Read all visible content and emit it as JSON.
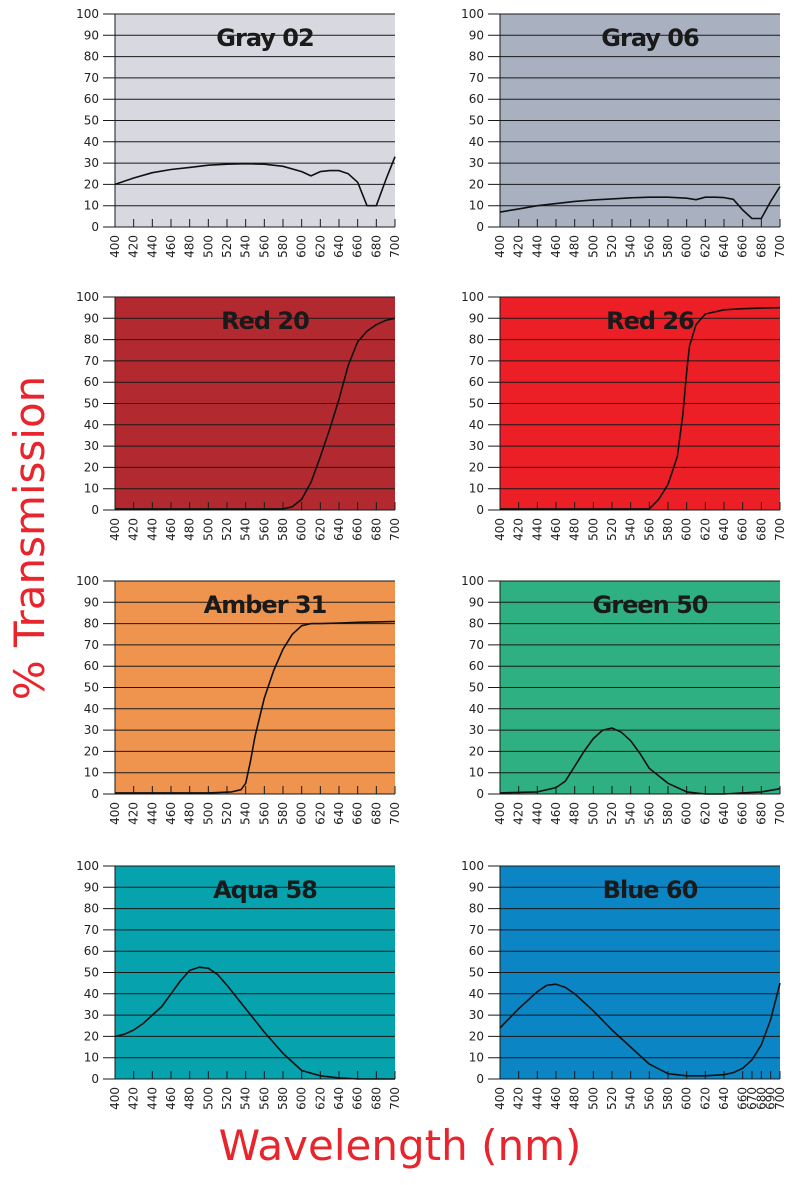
{
  "axis_labels": {
    "y": "% Transmission",
    "x": "Wavelength (nm)"
  },
  "colors": {
    "label_red": "#e8242c"
  },
  "chart_data": [
    {
      "type": "line",
      "title": "Gray 02",
      "background": "#d8d8e0",
      "x_ticks": [
        400,
        420,
        440,
        460,
        480,
        500,
        520,
        540,
        560,
        580,
        600,
        620,
        640,
        660,
        680,
        700
      ],
      "y_ticks": [
        0,
        10,
        20,
        30,
        40,
        50,
        60,
        70,
        80,
        90,
        100
      ],
      "xlim": [
        400,
        700
      ],
      "ylim": [
        0,
        100
      ],
      "grid": true,
      "x": [
        400,
        420,
        440,
        460,
        480,
        500,
        520,
        540,
        560,
        580,
        600,
        610,
        620,
        630,
        640,
        650,
        660,
        670,
        680,
        690,
        700
      ],
      "y": [
        20,
        23,
        25.5,
        27,
        28,
        29,
        29.5,
        29.7,
        29.5,
        28.5,
        26,
        24,
        26,
        26.5,
        26.5,
        25,
        21,
        10,
        10,
        22,
        33
      ]
    },
    {
      "type": "line",
      "title": "Gray 06",
      "background": "#a9b1c1",
      "x_ticks": [
        400,
        420,
        440,
        460,
        480,
        500,
        520,
        540,
        560,
        580,
        600,
        620,
        640,
        660,
        680,
        700
      ],
      "y_ticks": [
        0,
        10,
        20,
        30,
        40,
        50,
        60,
        70,
        80,
        90,
        100
      ],
      "xlim": [
        400,
        700
      ],
      "ylim": [
        0,
        100
      ],
      "grid": true,
      "x": [
        400,
        420,
        440,
        460,
        480,
        500,
        520,
        540,
        560,
        580,
        600,
        610,
        620,
        630,
        640,
        650,
        660,
        670,
        680,
        690,
        700
      ],
      "y": [
        7,
        8.5,
        10,
        11,
        12,
        12.7,
        13.2,
        13.7,
        14,
        14,
        13.5,
        12.8,
        14,
        14,
        13.8,
        13,
        8,
        4,
        4,
        12,
        19
      ]
    },
    {
      "type": "line",
      "title": "Red 20",
      "background": "#b22a30",
      "x_ticks": [
        400,
        420,
        440,
        460,
        480,
        500,
        520,
        540,
        560,
        580,
        600,
        620,
        640,
        660,
        680,
        700
      ],
      "y_ticks": [
        0,
        10,
        20,
        30,
        40,
        50,
        60,
        70,
        80,
        90,
        100
      ],
      "xlim": [
        400,
        700
      ],
      "ylim": [
        0,
        100
      ],
      "grid": true,
      "x": [
        400,
        500,
        560,
        580,
        590,
        600,
        610,
        620,
        630,
        640,
        650,
        660,
        670,
        680,
        690,
        700
      ],
      "y": [
        0.5,
        0.5,
        0.5,
        0.5,
        1.5,
        5,
        13,
        25,
        38,
        52,
        68,
        79,
        84,
        87,
        89,
        90
      ]
    },
    {
      "type": "line",
      "title": "Red 26",
      "background": "#ec1f27",
      "x_ticks": [
        400,
        420,
        440,
        460,
        480,
        500,
        520,
        540,
        560,
        580,
        600,
        620,
        640,
        660,
        680,
        700
      ],
      "y_ticks": [
        0,
        10,
        20,
        30,
        40,
        50,
        60,
        70,
        80,
        90,
        100
      ],
      "xlim": [
        400,
        700
      ],
      "ylim": [
        0,
        100
      ],
      "grid": true,
      "x": [
        400,
        500,
        550,
        560,
        570,
        580,
        590,
        596,
        600,
        603,
        610,
        620,
        640,
        660,
        680,
        700
      ],
      "y": [
        0.5,
        0.5,
        0.5,
        0.5,
        5,
        12,
        25,
        45,
        65,
        77,
        87,
        92,
        94,
        94.5,
        94.8,
        95
      ]
    },
    {
      "type": "line",
      "title": "Amber 31",
      "background": "#ee944f",
      "x_ticks": [
        400,
        420,
        440,
        460,
        480,
        500,
        520,
        540,
        560,
        580,
        600,
        620,
        640,
        660,
        680,
        700
      ],
      "y_ticks": [
        0,
        10,
        20,
        30,
        40,
        50,
        60,
        70,
        80,
        90,
        100
      ],
      "xlim": [
        400,
        700
      ],
      "ylim": [
        0,
        100
      ],
      "grid": true,
      "x": [
        400,
        500,
        525,
        535,
        540,
        545,
        550,
        560,
        570,
        580,
        590,
        600,
        610,
        620,
        640,
        660,
        680,
        700
      ],
      "y": [
        0.5,
        0.5,
        1,
        2,
        5,
        15,
        27,
        45,
        58,
        68,
        75,
        79,
        80,
        80,
        80.3,
        80.6,
        80.8,
        81
      ]
    },
    {
      "type": "line",
      "title": "Green 50",
      "background": "#2eb083",
      "x_ticks": [
        400,
        420,
        440,
        460,
        480,
        500,
        520,
        540,
        560,
        580,
        600,
        620,
        640,
        660,
        680,
        700
      ],
      "y_ticks": [
        0,
        10,
        20,
        30,
        40,
        50,
        60,
        70,
        80,
        90,
        100
      ],
      "xlim": [
        400,
        700
      ],
      "ylim": [
        0,
        100
      ],
      "grid": true,
      "x": [
        400,
        440,
        460,
        470,
        480,
        490,
        500,
        510,
        520,
        530,
        540,
        550,
        560,
        580,
        600,
        620,
        640,
        660,
        680,
        700
      ],
      "y": [
        0.5,
        1,
        3,
        6,
        13,
        20,
        26,
        30,
        31,
        29,
        25,
        19,
        12,
        5,
        1,
        0,
        0,
        0.5,
        1,
        2.5
      ]
    },
    {
      "type": "line",
      "title": "Aqua 58",
      "background": "#06a2ae",
      "x_ticks": [
        400,
        420,
        440,
        460,
        480,
        500,
        520,
        540,
        560,
        580,
        600,
        620,
        640,
        660,
        680,
        700
      ],
      "y_ticks": [
        0,
        10,
        20,
        30,
        40,
        50,
        60,
        70,
        80,
        90,
        100
      ],
      "xlim": [
        400,
        700
      ],
      "ylim": [
        0,
        100
      ],
      "grid": true,
      "x": [
        400,
        410,
        420,
        430,
        440,
        450,
        460,
        470,
        480,
        490,
        500,
        510,
        520,
        540,
        560,
        580,
        600,
        620,
        640,
        660,
        680,
        700
      ],
      "y": [
        20,
        21,
        23,
        26,
        30,
        34,
        40,
        46,
        51,
        52.5,
        52,
        49,
        44,
        33,
        22,
        12,
        4,
        1.5,
        0.5,
        0,
        0,
        0
      ]
    },
    {
      "type": "line",
      "title": "Blue 60",
      "background": "#0b85c3",
      "x_ticks": [
        400,
        420,
        440,
        460,
        480,
        500,
        520,
        540,
        560,
        580,
        600,
        620,
        640,
        660,
        670,
        680,
        690,
        700
      ],
      "y_ticks": [
        0,
        10,
        20,
        30,
        40,
        50,
        60,
        70,
        80,
        90,
        100
      ],
      "xlim": [
        400,
        700
      ],
      "ylim": [
        0,
        100
      ],
      "grid": true,
      "x": [
        400,
        420,
        440,
        450,
        460,
        470,
        480,
        500,
        520,
        540,
        560,
        580,
        600,
        620,
        640,
        650,
        660,
        670,
        680,
        690,
        700
      ],
      "y": [
        24,
        33,
        41,
        44,
        44.5,
        43,
        40,
        32,
        23,
        15,
        7,
        2.5,
        1.5,
        1.5,
        2,
        3,
        5,
        9,
        16,
        28,
        45
      ]
    }
  ]
}
